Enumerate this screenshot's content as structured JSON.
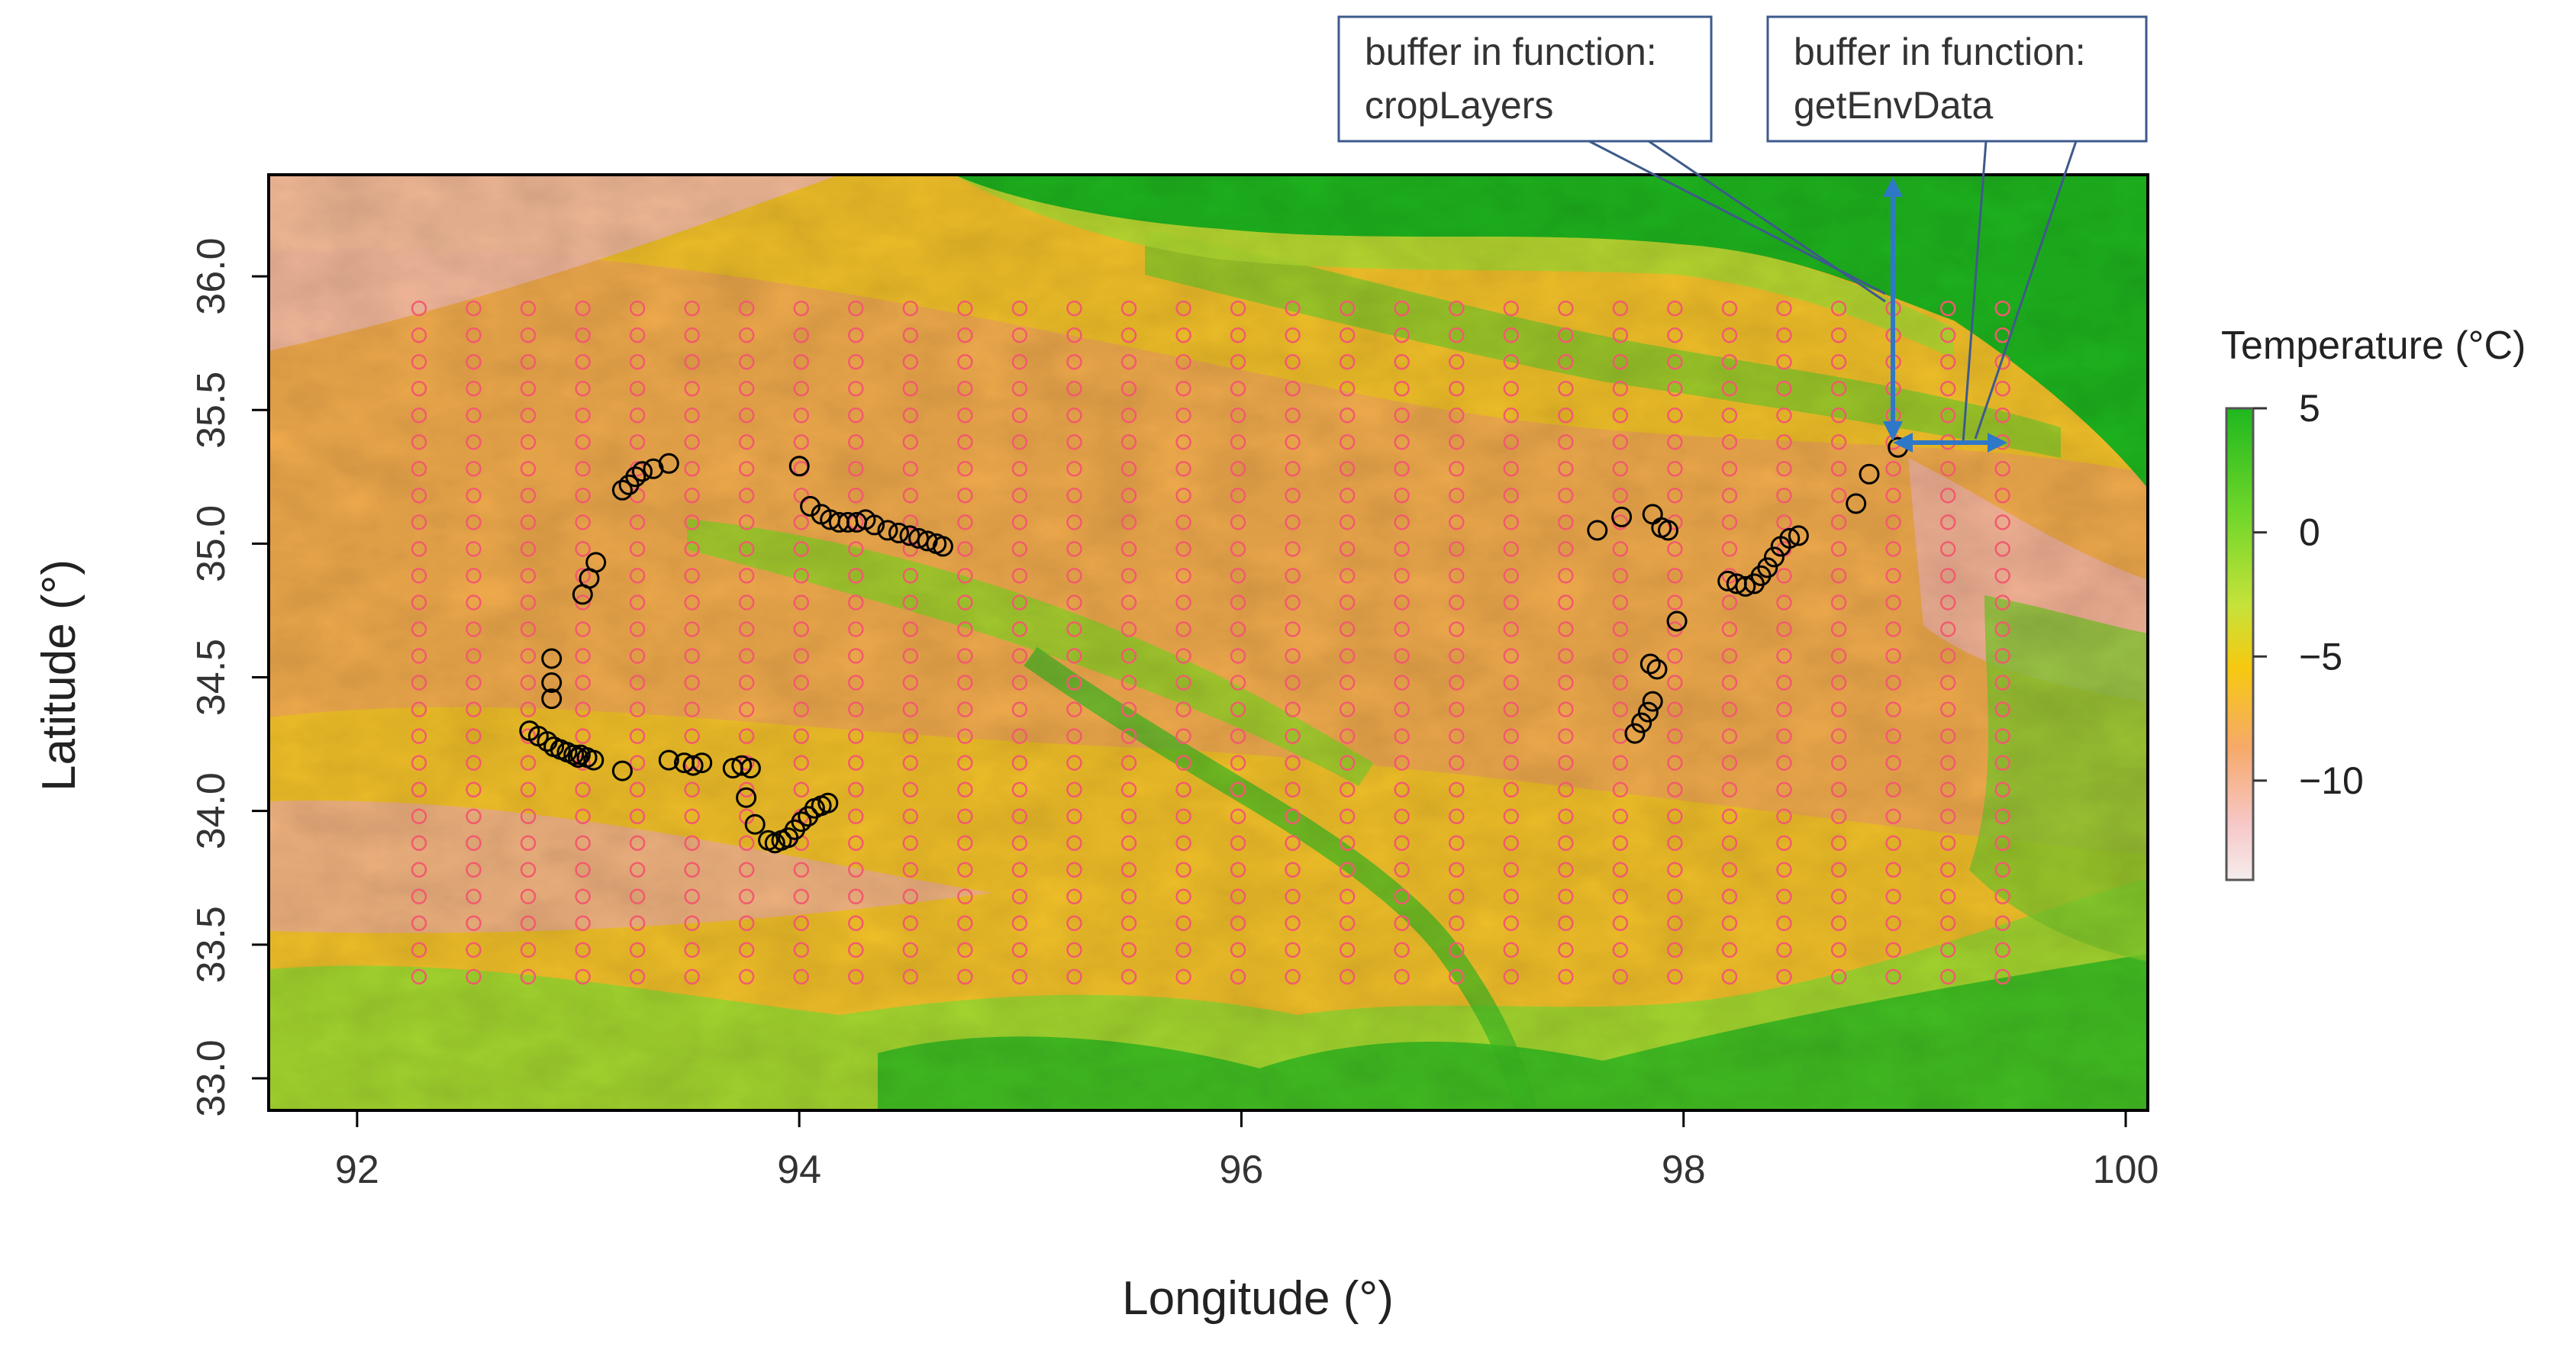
{
  "chart_data": {
    "type": "scatter",
    "xlabel": "Longitude (°)",
    "ylabel": "Latitude (°)",
    "xlim": [
      91.6,
      100.1
    ],
    "ylim": [
      32.88,
      36.38
    ],
    "xticks": [
      92,
      94,
      96,
      98,
      100
    ],
    "xtick_labels": [
      "92",
      "94",
      "96",
      "98",
      "100"
    ],
    "yticks": [
      33.0,
      33.5,
      34.0,
      34.5,
      35.0,
      35.5,
      36.0
    ],
    "ytick_labels": [
      "33.0",
      "33.5",
      "34.0",
      "34.5",
      "35.0",
      "35.5",
      "36.0"
    ],
    "raster": {
      "name": "temperature surface",
      "colors": {
        "high": "#1fb81f",
        "mid_high": "#a3de2e",
        "mid": "#f6d10e",
        "mid_low": "#f6a55a",
        "low": "#f7c0c0",
        "lowest": "#f5eaea"
      }
    },
    "legend": {
      "title": "Temperature (°C)",
      "range": [
        -14,
        5
      ],
      "ticks": [
        5,
        0,
        -5,
        -10
      ],
      "tick_labels": [
        "5",
        "0",
        "−5",
        "−10"
      ]
    },
    "background_grid": {
      "name": "background points",
      "color": "#f25a6e",
      "lon_start": 92.28,
      "lon_spacing": 0.247,
      "lon_count": 30,
      "lat_start": 33.38,
      "lat_spacing": 0.1,
      "lat_count": 26
    },
    "series": [
      {
        "name": "occurrence points",
        "color": "#000000",
        "points": [
          [
            92.78,
            34.3
          ],
          [
            92.82,
            34.28
          ],
          [
            92.86,
            34.26
          ],
          [
            92.89,
            34.24
          ],
          [
            92.92,
            34.23
          ],
          [
            92.95,
            34.22
          ],
          [
            92.98,
            34.21
          ],
          [
            93.01,
            34.21
          ],
          [
            93.04,
            34.2
          ],
          [
            93.07,
            34.19
          ],
          [
            93.0,
            34.2
          ],
          [
            93.2,
            34.15
          ],
          [
            93.41,
            34.19
          ],
          [
            93.48,
            34.18
          ],
          [
            93.52,
            34.17
          ],
          [
            93.56,
            34.18
          ],
          [
            93.7,
            34.16
          ],
          [
            93.74,
            34.17
          ],
          [
            93.78,
            34.16
          ],
          [
            93.76,
            34.05
          ],
          [
            93.8,
            33.95
          ],
          [
            93.86,
            33.89
          ],
          [
            93.89,
            33.88
          ],
          [
            93.92,
            33.89
          ],
          [
            93.95,
            33.9
          ],
          [
            93.98,
            33.93
          ],
          [
            94.01,
            33.96
          ],
          [
            94.04,
            33.98
          ],
          [
            94.07,
            34.01
          ],
          [
            94.1,
            34.02
          ],
          [
            94.13,
            34.03
          ],
          [
            92.88,
            34.57
          ],
          [
            92.88,
            34.48
          ],
          [
            92.88,
            34.42
          ],
          [
            93.02,
            34.81
          ],
          [
            93.05,
            34.87
          ],
          [
            93.08,
            34.93
          ],
          [
            93.2,
            35.2
          ],
          [
            93.23,
            35.22
          ],
          [
            93.26,
            35.25
          ],
          [
            93.29,
            35.27
          ],
          [
            93.34,
            35.28
          ],
          [
            93.41,
            35.3
          ],
          [
            94.0,
            35.29
          ],
          [
            94.05,
            35.14
          ],
          [
            94.1,
            35.11
          ],
          [
            94.14,
            35.09
          ],
          [
            94.18,
            35.08
          ],
          [
            94.22,
            35.08
          ],
          [
            94.26,
            35.08
          ],
          [
            94.3,
            35.09
          ],
          [
            94.34,
            35.07
          ],
          [
            94.4,
            35.05
          ],
          [
            94.45,
            35.04
          ],
          [
            94.5,
            35.03
          ],
          [
            94.54,
            35.02
          ],
          [
            94.58,
            35.01
          ],
          [
            94.62,
            35.0
          ],
          [
            94.65,
            34.99
          ],
          [
            97.61,
            35.05
          ],
          [
            97.72,
            35.1
          ],
          [
            97.86,
            35.11
          ],
          [
            97.9,
            35.06
          ],
          [
            97.93,
            35.05
          ],
          [
            97.97,
            34.71
          ],
          [
            97.85,
            34.55
          ],
          [
            97.88,
            34.53
          ],
          [
            97.78,
            34.29
          ],
          [
            97.81,
            34.33
          ],
          [
            97.84,
            34.37
          ],
          [
            97.86,
            34.41
          ],
          [
            98.2,
            34.86
          ],
          [
            98.24,
            34.85
          ],
          [
            98.28,
            34.84
          ],
          [
            98.32,
            34.85
          ],
          [
            98.35,
            34.88
          ],
          [
            98.38,
            34.91
          ],
          [
            98.41,
            34.95
          ],
          [
            98.44,
            34.99
          ],
          [
            98.48,
            35.02
          ],
          [
            98.52,
            35.03
          ],
          [
            98.78,
            35.15
          ],
          [
            98.84,
            35.26
          ],
          [
            98.97,
            35.36
          ]
        ]
      }
    ],
    "annotations": [
      {
        "name": "cropLayers-callout",
        "line1": "buffer in function:",
        "line2": "cropLayers",
        "direction": "vertical"
      },
      {
        "name": "getEnvData-callout",
        "line1": "buffer in function:",
        "line2": "getEnvData",
        "direction": "horizontal"
      }
    ]
  }
}
